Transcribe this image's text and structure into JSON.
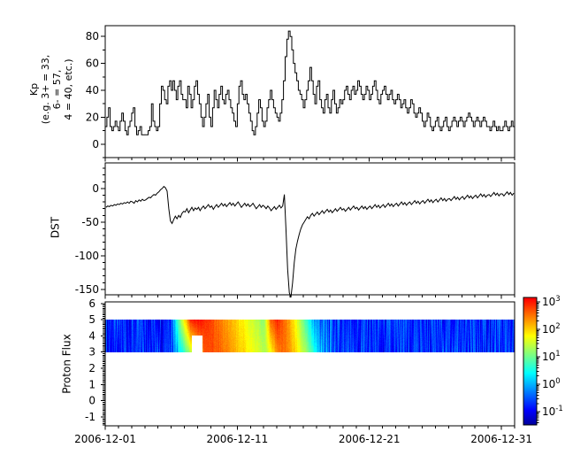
{
  "figure": {
    "background": "#ffffff",
    "line_color": "#000000"
  },
  "xaxis": {
    "range_days": [
      0,
      31
    ],
    "major_ticks": [
      {
        "day": 0,
        "label": "2006-12-01"
      },
      {
        "day": 10,
        "label": "2006-12-11"
      },
      {
        "day": 20,
        "label": "2006-12-21"
      },
      {
        "day": 30,
        "label": "2006-12-31"
      }
    ],
    "minor_step_days": 1
  },
  "chart_data": [
    {
      "type": "line",
      "style": "step",
      "title": "Kp index",
      "ylabel_lines": [
        "Kp",
        "(e.g. 3+ = 33,",
        "6- = 57,",
        "4 = 40, etc.)"
      ],
      "yticks": [
        0,
        20,
        40,
        60,
        80
      ],
      "ylim": [
        -10,
        88
      ],
      "dt_days": 0.125,
      "values": [
        13,
        20,
        27,
        13,
        10,
        13,
        17,
        13,
        10,
        17,
        23,
        17,
        10,
        7,
        13,
        17,
        23,
        27,
        13,
        7,
        10,
        13,
        7,
        7,
        7,
        7,
        10,
        13,
        30,
        17,
        13,
        10,
        13,
        30,
        43,
        40,
        33,
        30,
        43,
        47,
        40,
        47,
        40,
        33,
        43,
        47,
        37,
        33,
        33,
        27,
        43,
        37,
        27,
        33,
        43,
        47,
        37,
        30,
        20,
        13,
        20,
        30,
        37,
        20,
        13,
        27,
        40,
        33,
        27,
        37,
        43,
        33,
        30,
        37,
        40,
        33,
        27,
        23,
        17,
        13,
        30,
        43,
        47,
        37,
        33,
        37,
        30,
        23,
        17,
        10,
        7,
        13,
        23,
        33,
        27,
        17,
        13,
        17,
        27,
        33,
        40,
        33,
        27,
        23,
        20,
        17,
        23,
        33,
        47,
        65,
        78,
        84,
        80,
        70,
        60,
        53,
        47,
        40,
        37,
        33,
        27,
        33,
        40,
        47,
        57,
        47,
        37,
        30,
        43,
        47,
        33,
        27,
        23,
        33,
        37,
        27,
        23,
        33,
        40,
        30,
        23,
        27,
        33,
        30,
        33,
        40,
        43,
        37,
        33,
        40,
        43,
        37,
        40,
        47,
        43,
        37,
        33,
        37,
        43,
        40,
        33,
        37,
        43,
        47,
        40,
        33,
        30,
        37,
        40,
        43,
        37,
        33,
        37,
        40,
        33,
        30,
        33,
        37,
        33,
        27,
        30,
        33,
        27,
        23,
        27,
        33,
        30,
        23,
        20,
        23,
        27,
        23,
        17,
        13,
        17,
        23,
        20,
        13,
        10,
        13,
        17,
        20,
        13,
        10,
        13,
        17,
        20,
        13,
        10,
        13,
        17,
        20,
        17,
        13,
        17,
        20,
        17,
        13,
        17,
        20,
        23,
        20,
        17,
        13,
        17,
        20,
        17,
        13,
        17,
        20,
        17,
        13,
        13,
        10,
        13,
        17,
        13,
        10,
        13,
        10,
        10,
        13,
        17,
        13,
        10,
        13,
        17,
        13
      ]
    },
    {
      "type": "line",
      "style": "plain",
      "title": "DST",
      "ylabel": "DST",
      "yticks": [
        0,
        -50,
        -100,
        -150
      ],
      "ylim": [
        -158,
        38
      ],
      "dt_days": 0.125,
      "values": [
        -28,
        -26,
        -27,
        -25,
        -26,
        -24,
        -25,
        -23,
        -24,
        -22,
        -23,
        -21,
        -22,
        -20,
        -22,
        -19,
        -20,
        -22,
        -18,
        -20,
        -17,
        -19,
        -16,
        -18,
        -17,
        -15,
        -13,
        -14,
        -11,
        -9,
        -10,
        -7,
        -5,
        -2,
        0,
        3,
        1,
        -4,
        -30,
        -48,
        -52,
        -46,
        -41,
        -45,
        -40,
        -43,
        -37,
        -34,
        -35,
        -30,
        -36,
        -32,
        -28,
        -33,
        -29,
        -31,
        -28,
        -33,
        -29,
        -26,
        -30,
        -27,
        -24,
        -28,
        -26,
        -31,
        -27,
        -24,
        -28,
        -25,
        -22,
        -26,
        -23,
        -27,
        -24,
        -21,
        -25,
        -22,
        -26,
        -23,
        -20,
        -24,
        -28,
        -25,
        -22,
        -26,
        -23,
        -27,
        -25,
        -22,
        -26,
        -30,
        -27,
        -24,
        -28,
        -25,
        -27,
        -30,
        -26,
        -29,
        -33,
        -30,
        -27,
        -31,
        -28,
        -25,
        -29,
        -26,
        -9,
        -60,
        -120,
        -155,
        -162,
        -140,
        -110,
        -90,
        -78,
        -68,
        -60,
        -54,
        -50,
        -46,
        -42,
        -45,
        -40,
        -37,
        -41,
        -38,
        -35,
        -39,
        -36,
        -33,
        -37,
        -34,
        -31,
        -35,
        -32,
        -36,
        -33,
        -30,
        -34,
        -31,
        -28,
        -32,
        -30,
        -34,
        -31,
        -28,
        -32,
        -29,
        -26,
        -30,
        -28,
        -32,
        -29,
        -26,
        -30,
        -27,
        -31,
        -28,
        -26,
        -30,
        -27,
        -24,
        -28,
        -25,
        -29,
        -26,
        -24,
        -28,
        -25,
        -22,
        -26,
        -23,
        -27,
        -24,
        -22,
        -26,
        -23,
        -20,
        -24,
        -21,
        -25,
        -22,
        -20,
        -24,
        -21,
        -18,
        -22,
        -19,
        -23,
        -20,
        -18,
        -22,
        -19,
        -16,
        -20,
        -17,
        -21,
        -18,
        -16,
        -20,
        -17,
        -14,
        -18,
        -15,
        -19,
        -16,
        -15,
        -18,
        -15,
        -12,
        -16,
        -13,
        -17,
        -14,
        -12,
        -16,
        -13,
        -10,
        -14,
        -11,
        -15,
        -12,
        -10,
        -14,
        -11,
        -8,
        -12,
        -9,
        -13,
        -10,
        -9,
        -12,
        -9,
        -6,
        -10,
        -7,
        -11,
        -8,
        -8,
        -11,
        -8,
        -5,
        -9,
        -6,
        -10,
        -7
      ]
    },
    {
      "type": "heatmap",
      "title": "Proton Flux",
      "ylabel": "Proton Flux",
      "yticks": [
        -1,
        0,
        1,
        2,
        3,
        4,
        5,
        6
      ],
      "ylim": [
        -1.55,
        6.1
      ],
      "band_y": [
        3,
        5
      ],
      "dt_days": 0.5,
      "log10_flux_top": [
        -0.8,
        -0.7,
        -0.8,
        -0.75,
        -0.8,
        -0.7,
        -0.8,
        -0.75,
        -0.8,
        -0.7,
        -0.4,
        0.9,
        1.9,
        3.0,
        3.05,
        2.95,
        2.75,
        2.55,
        2.35,
        2.15,
        1.95,
        1.75,
        1.55,
        1.35,
        1.15,
        2.6,
        2.95,
        2.6,
        2.15,
        1.6,
        1.0,
        0.3,
        -0.2,
        -0.45,
        -0.6,
        -0.65,
        -0.7,
        -0.72,
        -0.75,
        -0.7,
        -0.75,
        -0.72,
        -0.78,
        -0.7,
        -0.75,
        -0.72,
        -0.78,
        -0.7,
        -0.75,
        -0.72,
        -0.78,
        -0.7,
        -0.75,
        -0.72,
        -0.78,
        -0.7,
        -0.75,
        -0.72,
        -0.78,
        -0.7,
        -0.75,
        -0.72,
        -0.78
      ],
      "log10_flux_bottom": [
        -0.8,
        -0.75,
        -0.8,
        -0.7,
        -0.8,
        -0.75,
        -0.7,
        -0.8,
        -0.75,
        -0.8,
        -0.7,
        0.1,
        0.8,
        1.5,
        2.1,
        2.6,
        2.75,
        2.65,
        2.5,
        2.3,
        2.1,
        1.95,
        1.75,
        1.55,
        1.35,
        1.7,
        2.45,
        2.55,
        2.3,
        1.85,
        1.4,
        0.9,
        0.35,
        -0.1,
        -0.35,
        -0.5,
        -0.6,
        -0.65,
        -0.7,
        -0.68,
        -0.72,
        -0.7,
        -0.74,
        -0.68,
        -0.72,
        -0.7,
        -0.74,
        -0.68,
        -0.72,
        -0.7,
        -0.74,
        -0.68,
        -0.72,
        -0.7,
        -0.74,
        -0.68,
        -0.72,
        -0.7,
        -0.74,
        -0.68,
        -0.72,
        -0.7,
        -0.74
      ],
      "data_gap": {
        "day_start": 6.55,
        "day_end": 7.35,
        "below_y": 4.05
      },
      "color_scale": {
        "type": "log",
        "colormap": "jet",
        "range_log10": [
          -1.48,
          3.16
        ],
        "tick_exponents": [
          3,
          2,
          1,
          0,
          -1
        ]
      }
    }
  ]
}
